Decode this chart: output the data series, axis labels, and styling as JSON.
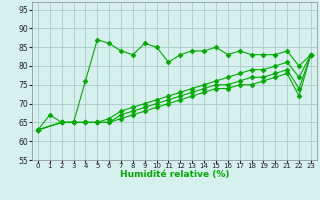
{
  "xlabel": "Humidité relative (%)",
  "bg_color": "#d6f0ee",
  "plot_bg_color": "#d6f0ee",
  "line_color": "#00aa00",
  "grid_color": "#aacccc",
  "xlim": [
    -0.5,
    23.5
  ],
  "ylim": [
    55,
    97
  ],
  "yticks": [
    55,
    60,
    65,
    70,
    75,
    80,
    85,
    90,
    95
  ],
  "xticks": [
    0,
    1,
    2,
    3,
    4,
    5,
    6,
    7,
    8,
    9,
    10,
    11,
    12,
    13,
    14,
    15,
    16,
    17,
    18,
    19,
    20,
    21,
    22,
    23
  ],
  "series": [
    {
      "x": [
        0,
        1,
        2,
        3,
        4,
        5,
        6,
        7,
        8,
        9,
        10,
        11,
        12,
        13,
        14,
        15,
        16,
        17,
        18,
        19,
        20,
        21,
        22,
        23
      ],
      "y": [
        63,
        67,
        65,
        65,
        76,
        87,
        86,
        84,
        83,
        86,
        85,
        81,
        83,
        84,
        84,
        85,
        83,
        84,
        83,
        83,
        83,
        84,
        80,
        83
      ]
    },
    {
      "x": [
        0,
        2,
        3,
        4,
        5,
        6,
        7,
        8,
        9,
        10,
        11,
        12,
        13,
        14,
        15,
        16,
        17,
        18,
        19,
        20,
        21,
        22,
        23
      ],
      "y": [
        63,
        65,
        65,
        65,
        65,
        66,
        68,
        69,
        70,
        71,
        72,
        73,
        74,
        75,
        76,
        77,
        78,
        79,
        79,
        80,
        81,
        77,
        83
      ]
    },
    {
      "x": [
        0,
        2,
        3,
        4,
        5,
        6,
        7,
        8,
        9,
        10,
        11,
        12,
        13,
        14,
        15,
        16,
        17,
        18,
        19,
        20,
        21,
        22,
        23
      ],
      "y": [
        63,
        65,
        65,
        65,
        65,
        65,
        67,
        68,
        69,
        70,
        71,
        72,
        73,
        74,
        75,
        75,
        76,
        77,
        77,
        78,
        79,
        74,
        83
      ]
    },
    {
      "x": [
        0,
        2,
        3,
        4,
        5,
        6,
        7,
        8,
        9,
        10,
        11,
        12,
        13,
        14,
        15,
        16,
        17,
        18,
        19,
        20,
        21,
        22,
        23
      ],
      "y": [
        63,
        65,
        65,
        65,
        65,
        65,
        66,
        67,
        68,
        69,
        70,
        71,
        72,
        73,
        74,
        74,
        75,
        75,
        76,
        77,
        78,
        72,
        83
      ]
    }
  ]
}
